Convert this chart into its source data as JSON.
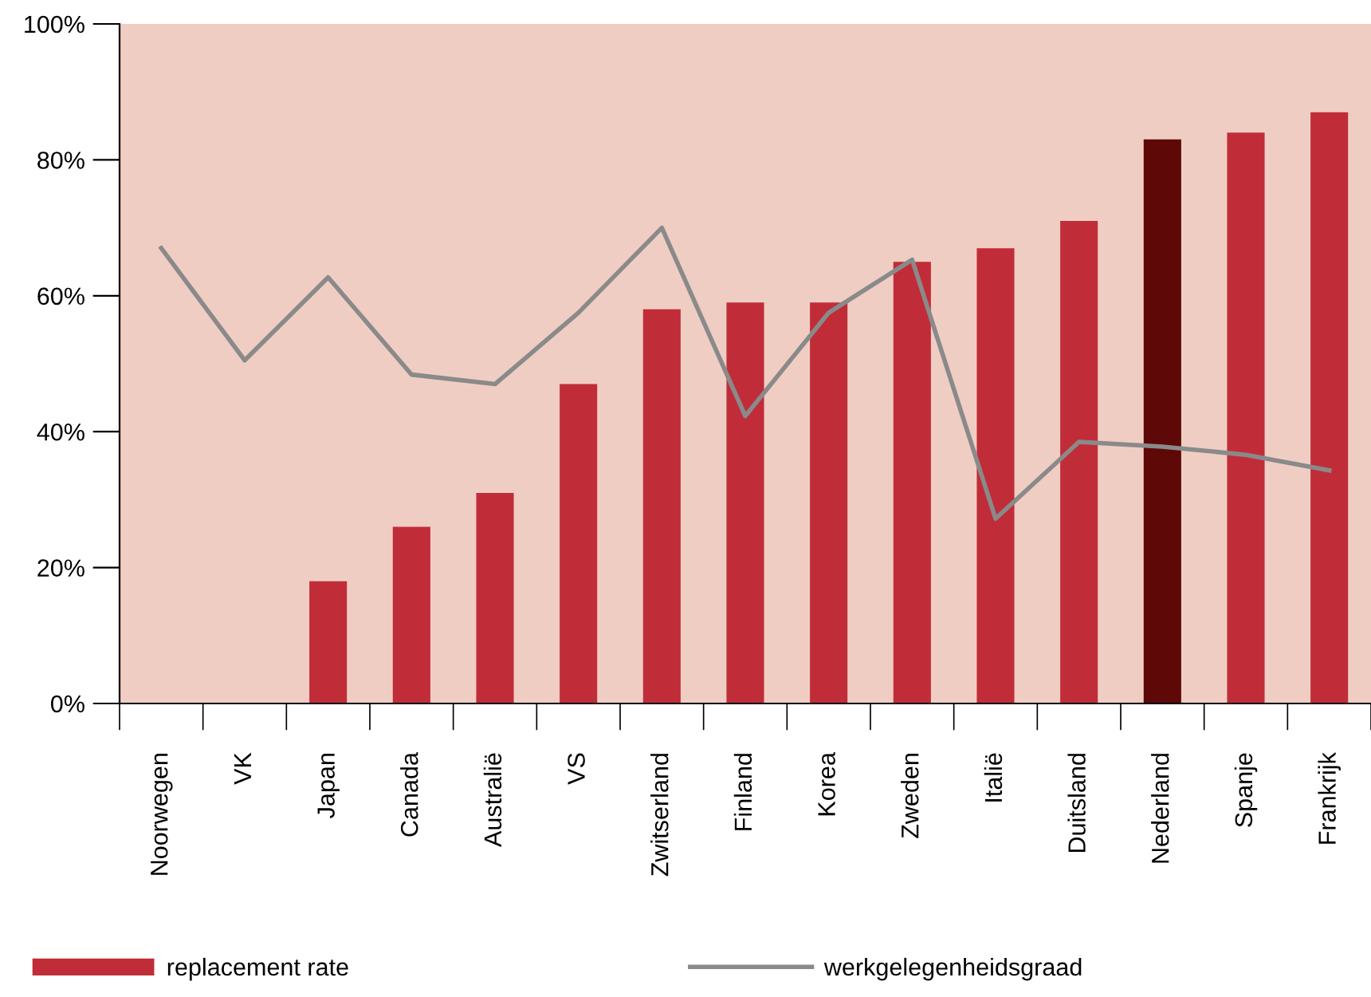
{
  "chart_data": {
    "type": "bar",
    "categories": [
      "Noorwegen",
      "VK",
      "Japan",
      "Canada",
      "Australië",
      "VS",
      "Zwitserland",
      "Finland",
      "Korea",
      "Zweden",
      "Italië",
      "Duitsland",
      "Nederland",
      "Spanje",
      "Frankrijk"
    ],
    "series": [
      {
        "name": "replacement rate",
        "color": "#c02d38",
        "colors": [
          "#c02d38",
          "#c02d38",
          "#c02d38",
          "#c02d38",
          "#c02d38",
          "#c02d38",
          "#c02d38",
          "#c02d38",
          "#c02d38",
          "#c02d38",
          "#c02d38",
          "#c02d38",
          "#5e0808",
          "#c02d38",
          "#c02d38"
        ],
        "values": [
          null,
          null,
          18,
          26,
          31,
          47,
          58,
          59,
          59,
          65,
          67,
          71,
          83,
          84,
          87
        ]
      },
      {
        "name": "werkgelegenheidsgraad",
        "type": "line",
        "color": "#8a8a8a",
        "values": [
          67,
          50.5,
          62.7,
          48.4,
          47,
          57.5,
          70,
          42.3,
          57.5,
          65.3,
          27.2,
          38.5,
          37.8,
          36.6,
          34.3
        ]
      }
    ],
    "ylim": [
      0,
      100
    ],
    "yticks": [
      {
        "value": 0,
        "label": "0%"
      },
      {
        "value": 20,
        "label": "20%"
      },
      {
        "value": 40,
        "label": "40%"
      },
      {
        "value": 60,
        "label": "60%"
      },
      {
        "value": 80,
        "label": "80%"
      },
      {
        "value": 100,
        "label": "100%"
      }
    ],
    "grid": false,
    "legend": "bottom",
    "marker": "none",
    "line_style": "solid"
  }
}
